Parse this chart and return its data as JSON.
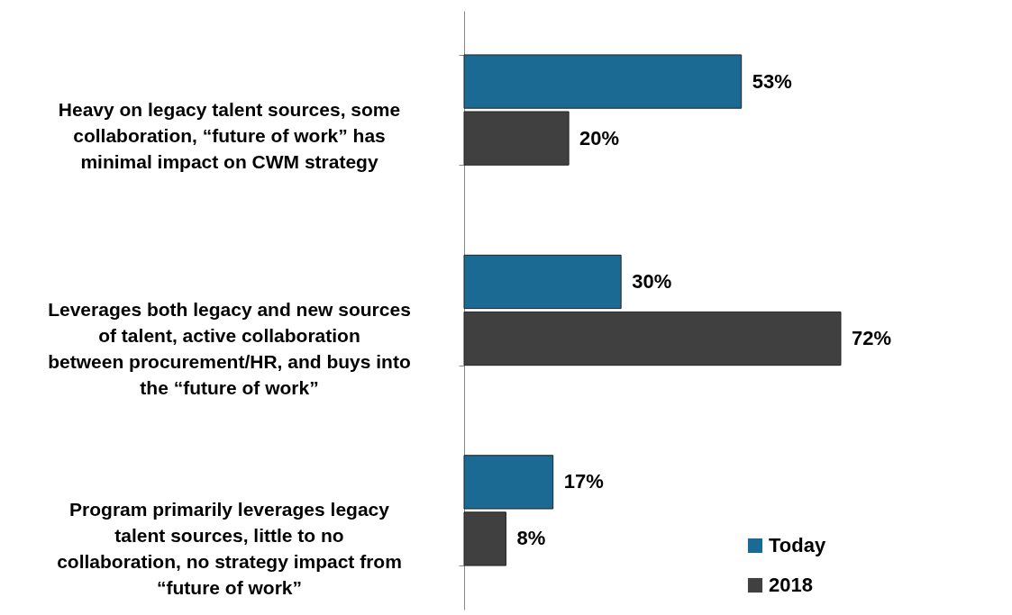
{
  "chart_data": {
    "type": "bar",
    "orientation": "horizontal",
    "legend": "bottom right",
    "categories": [
      "Heavy on legacy talent sources, some collaboration, “future of work” has minimal impact on CWM strategy",
      "Leverages both legacy and new sources of talent, active collaboration between procurement/HR, and buys into the “future of work”",
      "Program primarily leverages legacy talent sources, little to no collaboration, no strategy impact from “future of work”"
    ],
    "series": [
      {
        "name": "Today",
        "color": "#1b6a93",
        "values": [
          53,
          30,
          17
        ],
        "value_labels": [
          "53%",
          "30%",
          "17%"
        ]
      },
      {
        "name": "2018",
        "color": "#404040",
        "values": [
          20,
          72,
          8
        ],
        "value_labels": [
          "20%",
          "72%",
          "8%"
        ]
      }
    ]
  }
}
